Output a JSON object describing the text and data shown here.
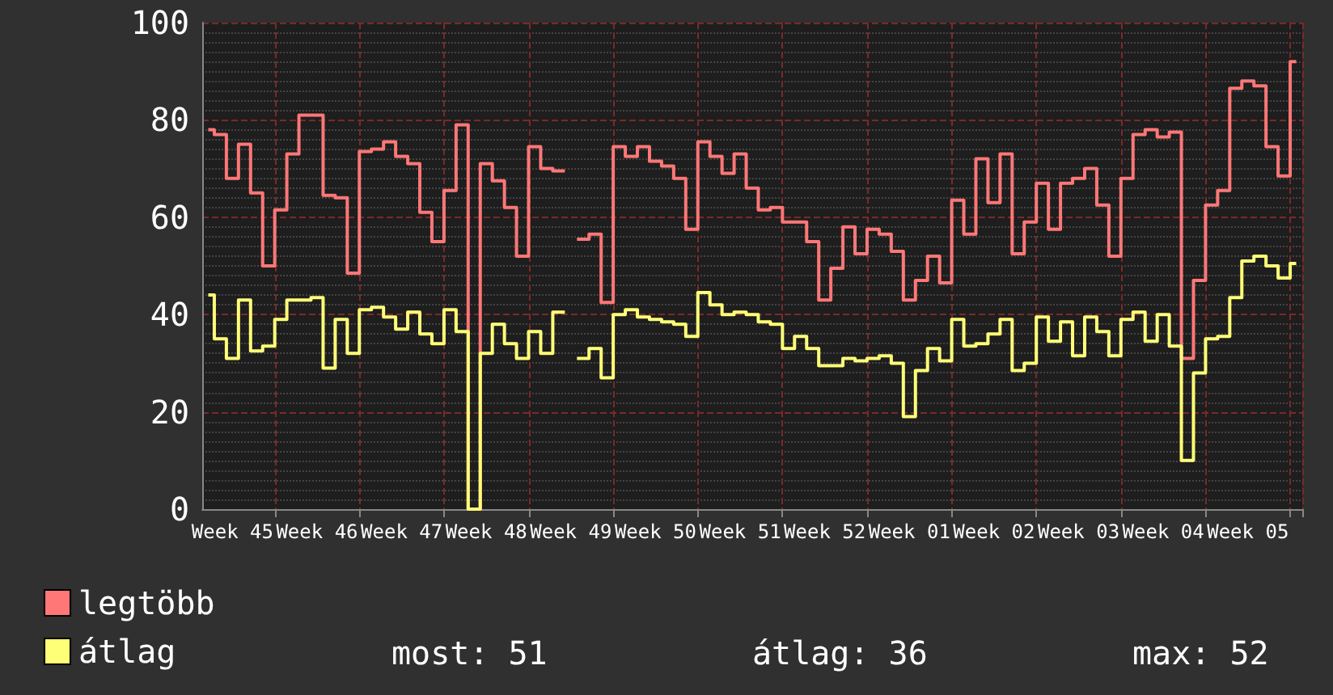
{
  "chart_data": {
    "type": "step",
    "categories": [
      null,
      null,
      "Week 45",
      null,
      null,
      null,
      null,
      null,
      null,
      "Week 46",
      null,
      null,
      null,
      null,
      null,
      null,
      "Week 47",
      null,
      null,
      null,
      null,
      null,
      null,
      "Week 48",
      null,
      null,
      null,
      null,
      null,
      null,
      "Week 49",
      null,
      null,
      null,
      null,
      null,
      null,
      "Week 50",
      null,
      null,
      null,
      null,
      null,
      null,
      "Week 51",
      null,
      null,
      null,
      null,
      null,
      null,
      "Week 52",
      null,
      null,
      null,
      null,
      null,
      null,
      "Week 01",
      null,
      null,
      null,
      null,
      null,
      null,
      "Week 02",
      null,
      null,
      null,
      null,
      null,
      null,
      "Week 03",
      null,
      null,
      null,
      null,
      null,
      null,
      "Week 04",
      null,
      null,
      null,
      null,
      null,
      null,
      "Week 05",
      null,
      null,
      null,
      null
    ],
    "series": [
      {
        "name": "legtöbb",
        "color": "#ff7777",
        "values": [
          78,
          77,
          68,
          75,
          65,
          50,
          61.5,
          73,
          81,
          81,
          64.5,
          64,
          48.5,
          73.5,
          74,
          75.5,
          72.5,
          71,
          61,
          55,
          65.5,
          79,
          0,
          71,
          67.5,
          62,
          52,
          74.5,
          70,
          69.5,
          null,
          55.5,
          56.5,
          42.5,
          74.5,
          72.5,
          74.5,
          71.5,
          70.5,
          68,
          57.5,
          75.5,
          72.5,
          69,
          73,
          66,
          61.5,
          62,
          59,
          59,
          55,
          43,
          49.5,
          58,
          52.5,
          57.5,
          56.5,
          53,
          43,
          47,
          52,
          46.5,
          63.5,
          56.5,
          72,
          63,
          73,
          52.5,
          59,
          67,
          57.5,
          67,
          68,
          70,
          62.5,
          52,
          68,
          77,
          78,
          76.5,
          77.5,
          31,
          47,
          62.5,
          65.5,
          86.5,
          88,
          87,
          74.5,
          68.5,
          92
        ]
      },
      {
        "name": "átlag",
        "color": "#ffff77",
        "values": [
          44,
          35,
          31,
          43,
          32.5,
          33.5,
          39,
          43,
          43,
          43.5,
          29,
          39,
          32,
          41,
          41.5,
          39.5,
          37,
          40.5,
          36,
          34,
          41,
          36.5,
          0,
          32,
          38,
          34,
          31,
          36.5,
          32,
          40.5,
          null,
          31,
          33,
          27,
          40,
          41,
          39.5,
          39,
          38.5,
          38,
          35.5,
          44.5,
          42,
          40,
          40.5,
          40,
          38.5,
          38,
          33,
          35.5,
          33,
          29.5,
          29.5,
          31,
          30.5,
          31,
          31.5,
          30,
          19,
          28.5,
          33,
          30.5,
          39,
          33.5,
          34,
          36,
          39,
          28.5,
          30,
          39.5,
          34.5,
          38.5,
          31.5,
          39.5,
          36.5,
          31.5,
          39,
          40.5,
          34.5,
          40,
          33.5,
          10,
          28,
          35,
          35.5,
          43.5,
          51,
          52,
          50,
          47.5,
          50.5
        ]
      }
    ],
    "ylim": [
      0,
      100
    ],
    "yticks": [
      0,
      20,
      40,
      60,
      80,
      100
    ],
    "grid": true,
    "legend": "bottom left",
    "marker": "none",
    "line_style": "solid",
    "annotations": [
      "most: 51",
      "átlag: 36",
      "max: 52"
    ]
  }
}
